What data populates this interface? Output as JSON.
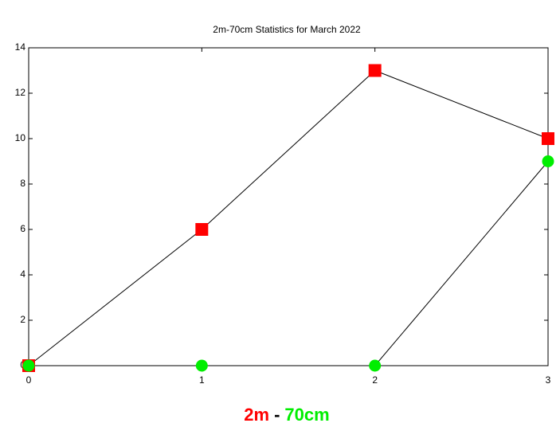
{
  "chart_data": {
    "type": "line",
    "title": "2m-70cm Statistics for March 2022",
    "x": [
      0,
      1,
      2,
      3
    ],
    "series": [
      {
        "name": "2m",
        "color": "#ff0000",
        "marker": "square",
        "values": [
          0,
          6,
          13,
          10
        ]
      },
      {
        "name": "70cm",
        "color": "#00ee00",
        "marker": "circle",
        "values": [
          0,
          0,
          0,
          9
        ]
      }
    ],
    "legend_separator": "-",
    "legend_position": "bottom",
    "line_color": "#000000",
    "xlim": [
      0,
      3
    ],
    "xticks": [
      0,
      1,
      2,
      3
    ],
    "ylim": [
      0,
      14
    ],
    "yticks": [
      0,
      2,
      4,
      6,
      8,
      10,
      12,
      14
    ],
    "grid": false
  }
}
